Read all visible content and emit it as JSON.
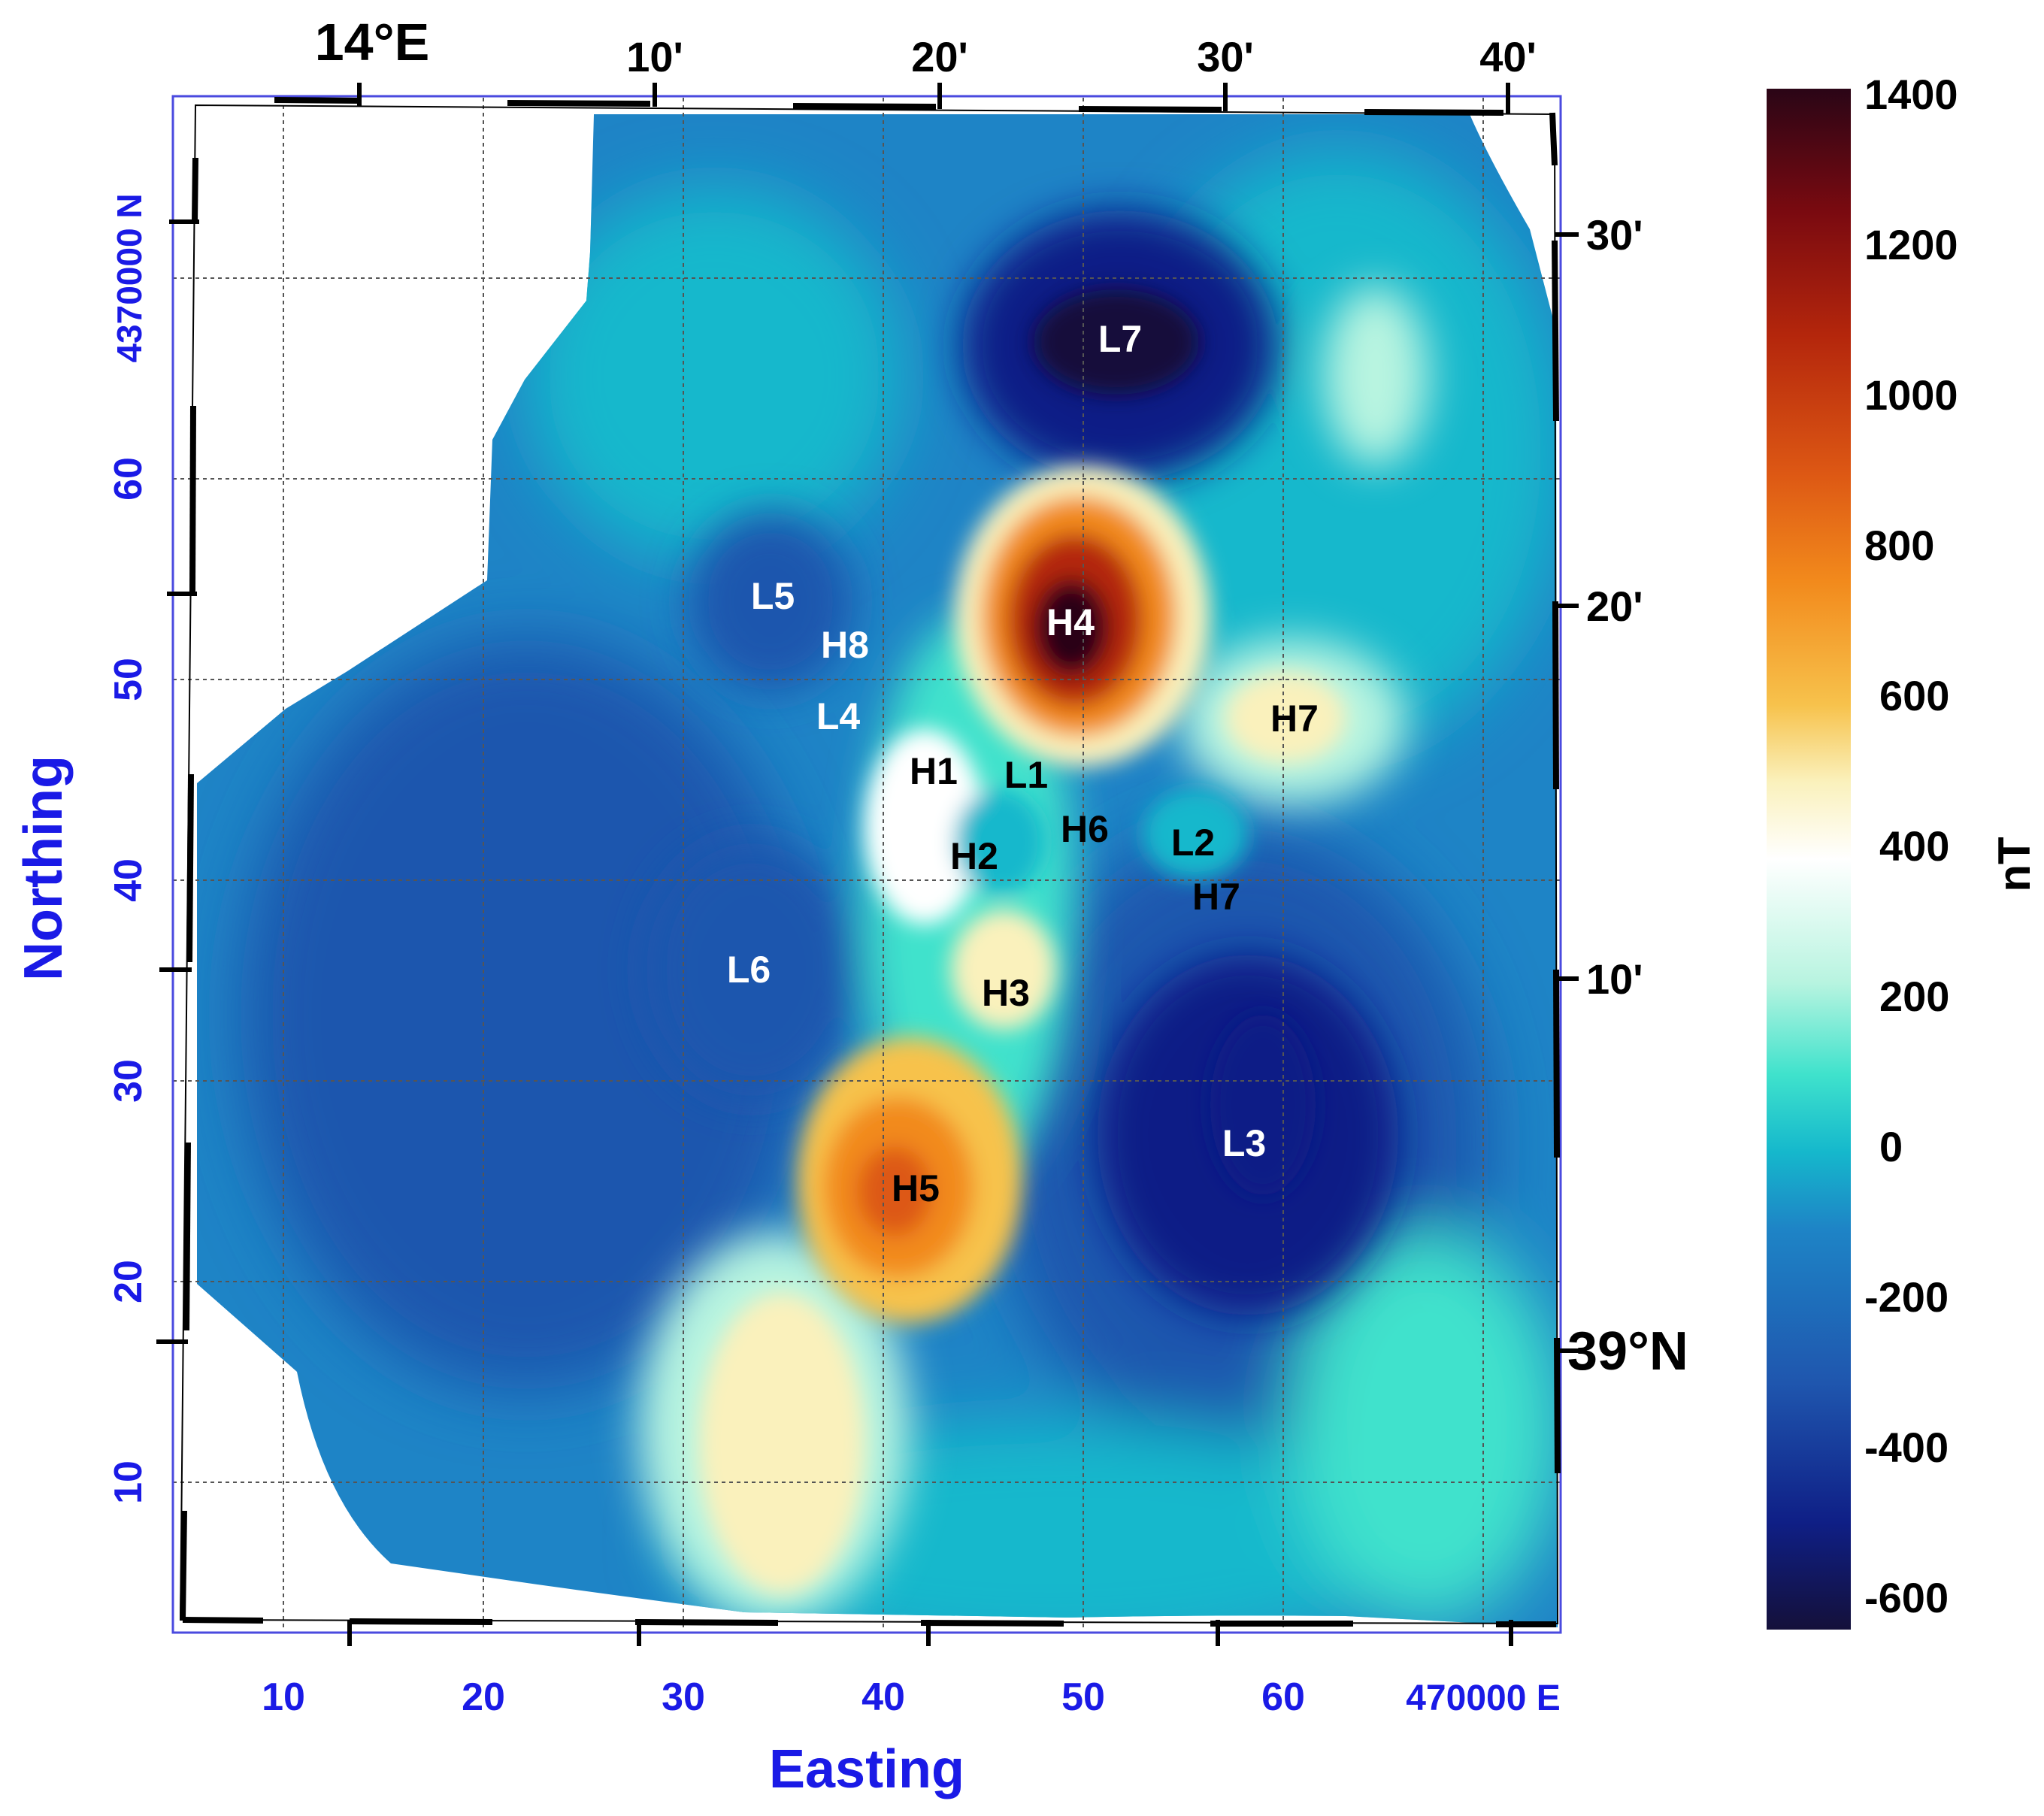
{
  "map": {
    "x_axis_title": "Easting",
    "y_axis_title": "Northing",
    "x_ticks": [
      "10",
      "20",
      "30",
      "40",
      "50",
      "60",
      "470000 E"
    ],
    "y_ticks": [
      "10",
      "20",
      "30",
      "40",
      "50",
      "60",
      "4370000 N"
    ],
    "top_lon_labels": [
      "14°E",
      "10'",
      "20'",
      "30'",
      "40'"
    ],
    "right_lat_labels": [
      "30'",
      "20'",
      "10'",
      "39°N"
    ],
    "anomaly_labels": [
      {
        "text": "L7",
        "color": "white"
      },
      {
        "text": "L5",
        "color": "white"
      },
      {
        "text": "H8",
        "color": "white"
      },
      {
        "text": "H4",
        "color": "white"
      },
      {
        "text": "L4",
        "color": "white"
      },
      {
        "text": "H7",
        "color": "black"
      },
      {
        "text": "H1",
        "color": "black"
      },
      {
        "text": "L1",
        "color": "black"
      },
      {
        "text": "H6",
        "color": "black"
      },
      {
        "text": "L2",
        "color": "black"
      },
      {
        "text": "H2",
        "color": "black"
      },
      {
        "text": "H7",
        "color": "black"
      },
      {
        "text": "L6",
        "color": "white"
      },
      {
        "text": "H3",
        "color": "black"
      },
      {
        "text": "L3",
        "color": "white"
      },
      {
        "text": "H5",
        "color": "black"
      }
    ]
  },
  "colorbar": {
    "unit": "nT",
    "ticks": [
      "1400",
      "1200",
      "1000",
      "800",
      "600",
      "400",
      "200",
      "0",
      "-200",
      "-400",
      "-600"
    ],
    "stops": [
      "#2a0516",
      "#7a0a10",
      "#b4260c",
      "#dd5814",
      "#f28a1c",
      "#f7c24c",
      "#faf1bc",
      "#ffffff",
      "#b8f4e0",
      "#3fe2cc",
      "#15b8cc",
      "#1e84c6",
      "#1f56ae",
      "#0f1f86",
      "#14103a"
    ],
    "colors": {
      "low": "#14103a",
      "zero": "#15b8cc",
      "high": "#2a0516"
    }
  }
}
